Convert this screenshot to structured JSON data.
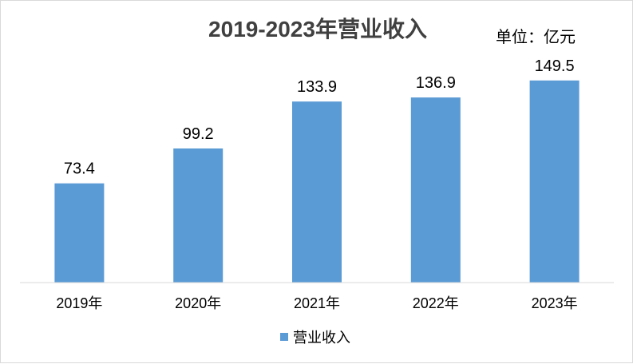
{
  "chart_data": {
    "type": "bar",
    "title": "2019-2023年营业收入",
    "unit_label": "单位：亿元",
    "categories": [
      "2019年",
      "2020年",
      "2021年",
      "2022年",
      "2023年"
    ],
    "series": [
      {
        "name": "营业收入",
        "values": [
          73.4,
          99.2,
          133.9,
          136.9,
          149.5
        ],
        "labels": [
          "73.4",
          "99.2",
          "133.9",
          "136.9",
          "149.5"
        ],
        "color": "#5b9bd5"
      }
    ],
    "ylim": [
      0,
      160
    ],
    "grid": false,
    "legend_position": "bottom"
  }
}
